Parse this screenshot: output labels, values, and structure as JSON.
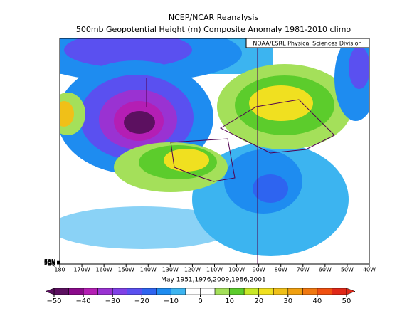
{
  "map": {
    "title": "NCEP/NCAR Reanalysis",
    "subtitle": "500mb Geopotential Height (m) Composite Anomaly 1981-2010 climo",
    "credit": "NOAA/ESRL Physical Sciences Division",
    "caption": "May 1951,1976,2009,1986,2001",
    "ylim": [
      0,
      85
    ],
    "yticks": [
      {
        "value": 0,
        "label": "EQ"
      },
      {
        "value": 10,
        "label": "10N"
      },
      {
        "value": 20,
        "label": "20N"
      },
      {
        "value": 30,
        "label": "30N"
      },
      {
        "value": 40,
        "label": "40N"
      },
      {
        "value": 50,
        "label": "50N"
      },
      {
        "value": 60,
        "label": "60N"
      },
      {
        "value": 70,
        "label": "70N"
      },
      {
        "value": 80,
        "label": "80N"
      }
    ],
    "xlim": [
      -180,
      -40
    ],
    "xticks": [
      {
        "value": -180,
        "label": "180"
      },
      {
        "value": -170,
        "label": "170W"
      },
      {
        "value": -160,
        "label": "160W"
      },
      {
        "value": -150,
        "label": "150W"
      },
      {
        "value": -140,
        "label": "140W"
      },
      {
        "value": -130,
        "label": "130W"
      },
      {
        "value": -120,
        "label": "120W"
      },
      {
        "value": -110,
        "label": "110W"
      },
      {
        "value": -100,
        "label": "100W"
      },
      {
        "value": -90,
        "label": "90W"
      },
      {
        "value": -80,
        "label": "80W"
      },
      {
        "value": -70,
        "label": "70W"
      },
      {
        "value": -60,
        "label": "60W"
      },
      {
        "value": -50,
        "label": "50W"
      },
      {
        "value": -40,
        "label": "40W"
      }
    ],
    "colorbar": {
      "ticks": [
        {
          "value": -50,
          "label": "−50"
        },
        {
          "value": -40,
          "label": "−40"
        },
        {
          "value": -30,
          "label": "−30"
        },
        {
          "value": -20,
          "label": "−20"
        },
        {
          "value": -10,
          "label": "−10"
        },
        0,
        10,
        20,
        30,
        40,
        50
      ],
      "bins": [
        -50,
        -45,
        -40,
        -35,
        -30,
        -25,
        -20,
        -15,
        -10,
        -5,
        0,
        5,
        10,
        15,
        20,
        25,
        30,
        35,
        40,
        45,
        50
      ],
      "colors": [
        "#5c1060",
        "#8a0a8a",
        "#b41eb4",
        "#9a32d2",
        "#8040e6",
        "#5a50f0",
        "#2e64f0",
        "#1e8cf0",
        "#3cb4f0",
        "#ffffff",
        "#ffffff",
        "#a4e05a",
        "#5ccc2c",
        "#c8e828",
        "#f0e020",
        "#f0c018",
        "#f0a010",
        "#f07810",
        "#f05010",
        "#e02818"
      ]
    }
  }
}
